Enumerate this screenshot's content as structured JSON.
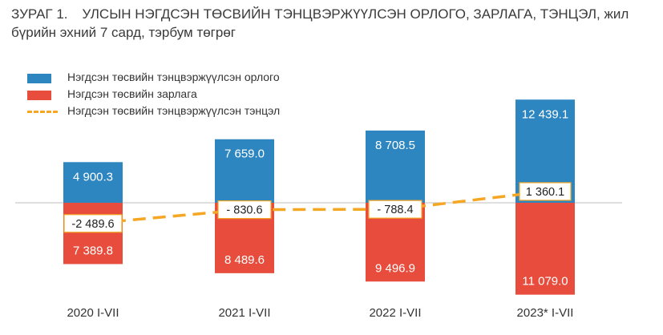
{
  "title": {
    "number": "ЗУРАГ 1.",
    "text": "УЛСЫН НЭГДСЭН ТӨСВИЙН ТЭНЦВЭРЖҮҮЛСЭН ОРЛОГО, ЗАРЛАГА, ТЭНЦЭЛ, жил бүрийн эхний 7 сард, тэрбум төгрөг"
  },
  "legend": {
    "revenue": "Нэгдсэн төсвийн тэнцвэржүүлсэн  орлого",
    "expenditure": "Нэгдсэн төсвийн зарлага",
    "balance": "Нэгдсэн төсвийн тэнцвэржүүлсэн  тэнцэл"
  },
  "colors": {
    "revenue": "#2e86c1",
    "expenditure": "#e74c3c",
    "balance": "#f5a623"
  },
  "chart_data": {
    "type": "bar",
    "categories": [
      "2020 I-VII",
      "2021 I-VII",
      "2022 I-VII",
      "2023* I-VII"
    ],
    "series": [
      {
        "name": "Нэгдсэн төсвийн тэнцвэржүүлсэн  орлого",
        "type": "bar",
        "values": [
          4900.3,
          7659.0,
          8708.5,
          12439.1
        ],
        "labels": [
          "4 900.3",
          "7 659.0",
          "8 708.5",
          "12 439.1"
        ]
      },
      {
        "name": "Нэгдсэн төсвийн зарлага",
        "type": "bar",
        "direction": "negative",
        "values": [
          7389.8,
          8489.6,
          9496.9,
          11079.0
        ],
        "labels": [
          "7 389.8",
          "8 489.6",
          "9 496.9",
          "11 079.0"
        ]
      },
      {
        "name": "Нэгдсэн төсвийн тэнцвэржүүлсэн  тэнцэл",
        "type": "line",
        "style": "dashed",
        "values": [
          -2489.6,
          -830.6,
          -788.4,
          1360.1
        ],
        "labels": [
          "-2 489.6",
          "- 830.6",
          "- 788.4",
          "1 360.1"
        ]
      }
    ],
    "ylim": [
      -12000,
      14000
    ],
    "legend_position": "top-left"
  }
}
